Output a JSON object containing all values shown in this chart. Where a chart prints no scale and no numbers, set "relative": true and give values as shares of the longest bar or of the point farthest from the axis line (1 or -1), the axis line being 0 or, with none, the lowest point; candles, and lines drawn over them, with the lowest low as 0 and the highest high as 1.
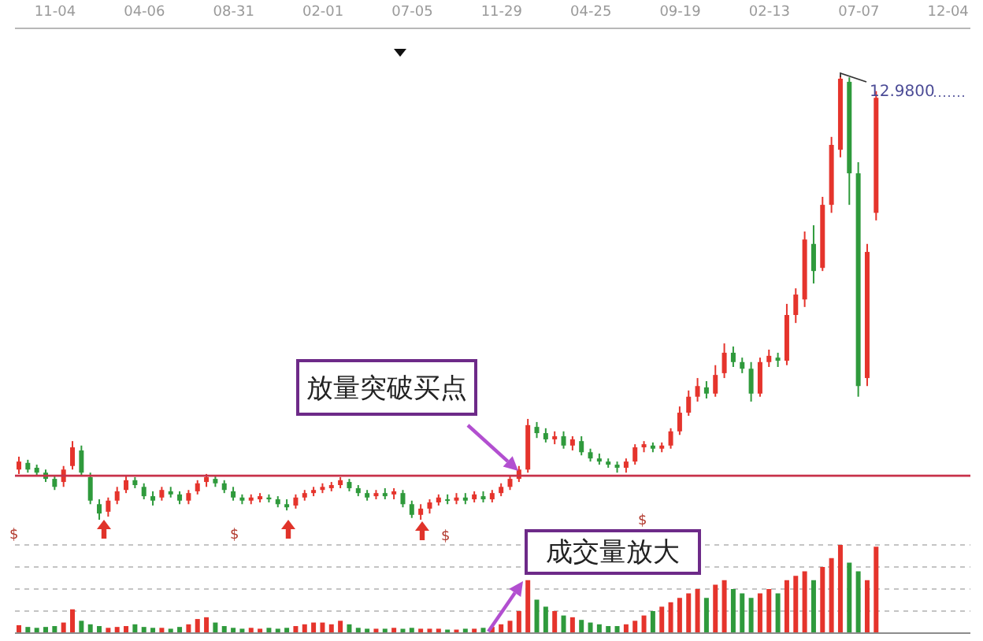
{
  "chart_data": [
    {
      "type": "candlestick",
      "categories": [
        null,
        null,
        null,
        null,
        "11-04",
        null,
        null,
        null,
        null,
        null,
        null,
        null,
        null,
        null,
        "04-06",
        null,
        null,
        null,
        null,
        null,
        null,
        null,
        null,
        null,
        "08-31",
        null,
        null,
        null,
        null,
        null,
        null,
        null,
        null,
        null,
        "02-01",
        null,
        null,
        null,
        null,
        null,
        null,
        null,
        null,
        null,
        "07-05",
        null,
        null,
        null,
        null,
        null,
        null,
        null,
        null,
        null,
        "11-29",
        null,
        null,
        null,
        null,
        null,
        null,
        null,
        null,
        null,
        "04-25",
        null,
        null,
        null,
        null,
        null,
        null,
        null,
        null,
        null,
        "09-19",
        null,
        null,
        null,
        null,
        null,
        null,
        null,
        null,
        null,
        "02-13",
        null,
        null,
        null,
        null,
        null,
        null,
        null,
        null,
        null,
        "07-07",
        null,
        null,
        null,
        null,
        null,
        null,
        null,
        null,
        null,
        "12-04",
        null,
        null
      ],
      "ohlc": [
        [
          0.113,
          0.142,
          0.103,
          0.131
        ],
        [
          0.128,
          0.135,
          0.106,
          0.113
        ],
        [
          0.117,
          0.124,
          0.099,
          0.106
        ],
        [
          0.106,
          0.113,
          0.085,
          0.092
        ],
        [
          0.092,
          0.099,
          0.067,
          0.074
        ],
        [
          0.085,
          0.121,
          0.074,
          0.113
        ],
        [
          0.121,
          0.177,
          0.113,
          0.163
        ],
        [
          0.156,
          0.167,
          0.099,
          0.106
        ],
        [
          0.096,
          0.106,
          0.035,
          0.043
        ],
        [
          0.035,
          0.046,
          0,
          0.014
        ],
        [
          0.018,
          0.05,
          0.007,
          0.043
        ],
        [
          0.043,
          0.074,
          0.035,
          0.064
        ],
        [
          0.067,
          0.099,
          0.06,
          0.089
        ],
        [
          0.089,
          0.096,
          0.071,
          0.078
        ],
        [
          0.074,
          0.082,
          0.046,
          0.053
        ],
        [
          0.053,
          0.064,
          0.032,
          0.043
        ],
        [
          0.05,
          0.074,
          0.043,
          0.067
        ],
        [
          0.064,
          0.074,
          0.05,
          0.057
        ],
        [
          0.057,
          0.064,
          0.035,
          0.043
        ],
        [
          0.043,
          0.067,
          0.035,
          0.06
        ],
        [
          0.064,
          0.089,
          0.057,
          0.082
        ],
        [
          0.085,
          0.103,
          0.074,
          0.096
        ],
        [
          0.092,
          0.099,
          0.074,
          0.082
        ],
        [
          0.082,
          0.089,
          0.06,
          0.067
        ],
        [
          0.064,
          0.074,
          0.043,
          0.05
        ],
        [
          0.05,
          0.057,
          0.035,
          0.043
        ],
        [
          0.043,
          0.057,
          0.035,
          0.05
        ],
        [
          0.046,
          0.06,
          0.039,
          0.053
        ],
        [
          0.05,
          0.057,
          0.039,
          0.046
        ],
        [
          0.046,
          0.053,
          0.028,
          0.035
        ],
        [
          0.035,
          0.046,
          0.021,
          0.028
        ],
        [
          0.032,
          0.057,
          0.025,
          0.05
        ],
        [
          0.05,
          0.067,
          0.043,
          0.06
        ],
        [
          0.06,
          0.074,
          0.053,
          0.067
        ],
        [
          0.067,
          0.082,
          0.06,
          0.074
        ],
        [
          0.071,
          0.085,
          0.064,
          0.078
        ],
        [
          0.078,
          0.096,
          0.071,
          0.089
        ],
        [
          0.085,
          0.092,
          0.064,
          0.071
        ],
        [
          0.071,
          0.078,
          0.053,
          0.06
        ],
        [
          0.06,
          0.067,
          0.043,
          0.05
        ],
        [
          0.053,
          0.067,
          0.046,
          0.06
        ],
        [
          0.06,
          0.071,
          0.046,
          0.053
        ],
        [
          0.057,
          0.071,
          0.046,
          0.064
        ],
        [
          0.06,
          0.067,
          0.028,
          0.035
        ],
        [
          0.035,
          0.043,
          0.004,
          0.011
        ],
        [
          0.011,
          0.035,
          0,
          0.025
        ],
        [
          0.025,
          0.046,
          0.014,
          0.039
        ],
        [
          0.039,
          0.057,
          0.032,
          0.05
        ],
        [
          0.046,
          0.057,
          0.035,
          0.043
        ],
        [
          0.043,
          0.06,
          0.035,
          0.05
        ],
        [
          0.05,
          0.06,
          0.035,
          0.043
        ],
        [
          0.046,
          0.064,
          0.039,
          0.057
        ],
        [
          0.053,
          0.064,
          0.039,
          0.046
        ],
        [
          0.046,
          0.067,
          0.039,
          0.06
        ],
        [
          0.06,
          0.082,
          0.053,
          0.074
        ],
        [
          0.074,
          0.099,
          0.067,
          0.092
        ],
        [
          0.092,
          0.121,
          0.085,
          0.113
        ],
        [
          0.113,
          0.227,
          0.106,
          0.213
        ],
        [
          0.209,
          0.22,
          0.184,
          0.195
        ],
        [
          0.195,
          0.206,
          0.174,
          0.181
        ],
        [
          0.181,
          0.199,
          0.17,
          0.188
        ],
        [
          0.188,
          0.199,
          0.16,
          0.167
        ],
        [
          0.167,
          0.188,
          0.156,
          0.181
        ],
        [
          0.177,
          0.188,
          0.145,
          0.152
        ],
        [
          0.152,
          0.16,
          0.131,
          0.138
        ],
        [
          0.138,
          0.149,
          0.124,
          0.131
        ],
        [
          0.131,
          0.138,
          0.117,
          0.124
        ],
        [
          0.124,
          0.131,
          0.106,
          0.117
        ],
        [
          0.117,
          0.138,
          0.106,
          0.131
        ],
        [
          0.131,
          0.17,
          0.124,
          0.163
        ],
        [
          0.163,
          0.177,
          0.152,
          0.17
        ],
        [
          0.167,
          0.174,
          0.152,
          0.16
        ],
        [
          0.16,
          0.174,
          0.152,
          0.167
        ],
        [
          0.167,
          0.206,
          0.16,
          0.199
        ],
        [
          0.199,
          0.255,
          0.191,
          0.241
        ],
        [
          0.241,
          0.291,
          0.234,
          0.277
        ],
        [
          0.277,
          0.319,
          0.266,
          0.301
        ],
        [
          0.298,
          0.312,
          0.273,
          0.284
        ],
        [
          0.284,
          0.348,
          0.277,
          0.326
        ],
        [
          0.33,
          0.397,
          0.319,
          0.376
        ],
        [
          0.376,
          0.39,
          0.344,
          0.355
        ],
        [
          0.355,
          0.365,
          0.33,
          0.34
        ],
        [
          0.34,
          0.355,
          0.266,
          0.284
        ],
        [
          0.284,
          0.365,
          0.277,
          0.355
        ],
        [
          0.355,
          0.383,
          0.344,
          0.369
        ],
        [
          0.365,
          0.376,
          0.344,
          0.358
        ],
        [
          0.358,
          0.486,
          0.348,
          0.461
        ],
        [
          0.461,
          0.521,
          0.443,
          0.507
        ],
        [
          0.496,
          0.649,
          0.479,
          0.631
        ],
        [
          0.621,
          0.663,
          0.532,
          0.56
        ],
        [
          0.567,
          0.727,
          0.56,
          0.709
        ],
        [
          0.709,
          0.862,
          0.691,
          0.844
        ],
        [
          0.833,
          1,
          0.816,
          0.993
        ],
        [
          0.986,
          0.996,
          0.709,
          0.78
        ],
        [
          0.78,
          0.805,
          0.277,
          0.301
        ],
        [
          0.319,
          0.621,
          0.301,
          0.603
        ],
        [
          0.691,
          0.965,
          0.674,
          0.95
        ],
        null,
        null,
        null,
        null,
        null,
        null,
        null,
        null,
        null,
        null
      ],
      "colors": [
        "#e5342c",
        "#2f9a3c",
        "#2f9a3c",
        "#2f9a3c",
        "#2f9a3c",
        "#e5342c",
        "#e5342c",
        "#2f9a3c",
        "#2f9a3c",
        "#2f9a3c",
        "#e5342c",
        "#e5342c",
        "#e5342c",
        "#2f9a3c",
        "#2f9a3c",
        "#2f9a3c",
        "#e5342c",
        "#2f9a3c",
        "#2f9a3c",
        "#e5342c",
        "#e5342c",
        "#e5342c",
        "#2f9a3c",
        "#2f9a3c",
        "#2f9a3c",
        "#2f9a3c",
        "#e5342c",
        "#e5342c",
        "#2f9a3c",
        "#2f9a3c",
        "#2f9a3c",
        "#e5342c",
        "#e5342c",
        "#e5342c",
        "#e5342c",
        "#e5342c",
        "#e5342c",
        "#2f9a3c",
        "#2f9a3c",
        "#2f9a3c",
        "#e5342c",
        "#2f9a3c",
        "#e5342c",
        "#2f9a3c",
        "#2f9a3c",
        "#e5342c",
        "#e5342c",
        "#e5342c",
        "#2f9a3c",
        "#e5342c",
        "#2f9a3c",
        "#e5342c",
        "#2f9a3c",
        "#e5342c",
        "#e5342c",
        "#e5342c",
        "#e5342c",
        "#e5342c",
        "#2f9a3c",
        "#2f9a3c",
        "#e5342c",
        "#2f9a3c",
        "#e5342c",
        "#2f9a3c",
        "#2f9a3c",
        "#2f9a3c",
        "#2f9a3c",
        "#2f9a3c",
        "#e5342c",
        "#e5342c",
        "#e5342c",
        "#2f9a3c",
        "#e5342c",
        "#e5342c",
        "#e5342c",
        "#e5342c",
        "#e5342c",
        "#2f9a3c",
        "#e5342c",
        "#e5342c",
        "#2f9a3c",
        "#2f9a3c",
        "#2f9a3c",
        "#e5342c",
        "#e5342c",
        "#2f9a3c",
        "#e5342c",
        "#e5342c",
        "#e5342c",
        "#2f9a3c",
        "#e5342c",
        "#e5342c",
        "#e5342c",
        "#2f9a3c",
        "#2f9a3c",
        "#e5342c",
        "#e5342c",
        null,
        null,
        null,
        null,
        null,
        null,
        null,
        null,
        null,
        null
      ],
      "relative": true,
      "ref_lines": [
        {
          "axis": "y",
          "value": 0.099,
          "color": "#c8324a"
        }
      ],
      "annotations": [
        "放量突破买点",
        "$",
        "$",
        "$",
        "$",
        "12.9800"
      ]
    },
    {
      "type": "bar",
      "categories": [
        null,
        null,
        null,
        null,
        null,
        null,
        null,
        null,
        null,
        null,
        null,
        null,
        null,
        null,
        null,
        null,
        null,
        null,
        null,
        null,
        null,
        null,
        null,
        null,
        null,
        null,
        null,
        null,
        null,
        null,
        null,
        null,
        null,
        null,
        null,
        null,
        null,
        null,
        null,
        null,
        null,
        null,
        null,
        null,
        null,
        null,
        null,
        null,
        null,
        null,
        null,
        null,
        null,
        null,
        null,
        null,
        null,
        null,
        null,
        null,
        null,
        null,
        null,
        null,
        null,
        null,
        null,
        null,
        null,
        null,
        null,
        null,
        null,
        null,
        null,
        null,
        null,
        null,
        null,
        null,
        null,
        null,
        null,
        null,
        null,
        null,
        null,
        null,
        null,
        null,
        null,
        null,
        null,
        null,
        null,
        null,
        null,
        null,
        null,
        null,
        null,
        null,
        null,
        null,
        null,
        null,
        null
      ],
      "values": [
        0.09,
        0.07,
        0.06,
        0.07,
        0.08,
        0.12,
        0.27,
        0.14,
        0.1,
        0.08,
        0.06,
        0.07,
        0.08,
        0.1,
        0.07,
        0.06,
        0.06,
        0.05,
        0.07,
        0.1,
        0.16,
        0.18,
        0.12,
        0.08,
        0.06,
        0.05,
        0.06,
        0.05,
        0.06,
        0.05,
        0.06,
        0.08,
        0.1,
        0.12,
        0.12,
        0.1,
        0.14,
        0.1,
        0.06,
        0.05,
        0.05,
        0.05,
        0.06,
        0.05,
        0.06,
        0.05,
        0.05,
        0.05,
        0.04,
        0.04,
        0.05,
        0.05,
        0.06,
        0.07,
        0.1,
        0.14,
        0.25,
        0.6,
        0.38,
        0.3,
        0.25,
        0.2,
        0.18,
        0.15,
        0.12,
        0.1,
        0.08,
        0.08,
        0.1,
        0.14,
        0.2,
        0.25,
        0.3,
        0.35,
        0.4,
        0.45,
        0.5,
        0.4,
        0.55,
        0.6,
        0.5,
        0.45,
        0.4,
        0.45,
        0.5,
        0.45,
        0.6,
        0.65,
        0.7,
        0.6,
        0.75,
        0.85,
        1,
        0.8,
        0.7,
        0.6,
        0.98,
        null,
        null,
        null,
        null,
        null,
        null,
        null,
        null,
        null,
        null
      ],
      "colors": [
        "#e5342c",
        "#2f9a3c",
        "#2f9a3c",
        "#2f9a3c",
        "#2f9a3c",
        "#e5342c",
        "#e5342c",
        "#2f9a3c",
        "#2f9a3c",
        "#2f9a3c",
        "#e5342c",
        "#e5342c",
        "#e5342c",
        "#2f9a3c",
        "#2f9a3c",
        "#2f9a3c",
        "#e5342c",
        "#2f9a3c",
        "#2f9a3c",
        "#e5342c",
        "#e5342c",
        "#e5342c",
        "#2f9a3c",
        "#2f9a3c",
        "#2f9a3c",
        "#2f9a3c",
        "#e5342c",
        "#e5342c",
        "#2f9a3c",
        "#2f9a3c",
        "#2f9a3c",
        "#e5342c",
        "#e5342c",
        "#e5342c",
        "#e5342c",
        "#e5342c",
        "#e5342c",
        "#2f9a3c",
        "#2f9a3c",
        "#2f9a3c",
        "#e5342c",
        "#2f9a3c",
        "#e5342c",
        "#2f9a3c",
        "#2f9a3c",
        "#e5342c",
        "#e5342c",
        "#e5342c",
        "#2f9a3c",
        "#e5342c",
        "#2f9a3c",
        "#e5342c",
        "#2f9a3c",
        "#e5342c",
        "#e5342c",
        "#e5342c",
        "#e5342c",
        "#e5342c",
        "#2f9a3c",
        "#2f9a3c",
        "#e5342c",
        "#2f9a3c",
        "#e5342c",
        "#2f9a3c",
        "#2f9a3c",
        "#2f9a3c",
        "#2f9a3c",
        "#2f9a3c",
        "#e5342c",
        "#e5342c",
        "#e5342c",
        "#2f9a3c",
        "#e5342c",
        "#e5342c",
        "#e5342c",
        "#e5342c",
        "#e5342c",
        "#2f9a3c",
        "#e5342c",
        "#e5342c",
        "#2f9a3c",
        "#2f9a3c",
        "#2f9a3c",
        "#e5342c",
        "#e5342c",
        "#2f9a3c",
        "#e5342c",
        "#e5342c",
        "#e5342c",
        "#2f9a3c",
        "#e5342c",
        "#e5342c",
        "#e5342c",
        "#2f9a3c",
        "#2f9a3c",
        "#e5342c",
        "#e5342c",
        null,
        null,
        null,
        null,
        null,
        null,
        null,
        null,
        null,
        null
      ],
      "relative": true,
      "grid": "y",
      "annotations": [
        "成交量放大"
      ]
    }
  ]
}
